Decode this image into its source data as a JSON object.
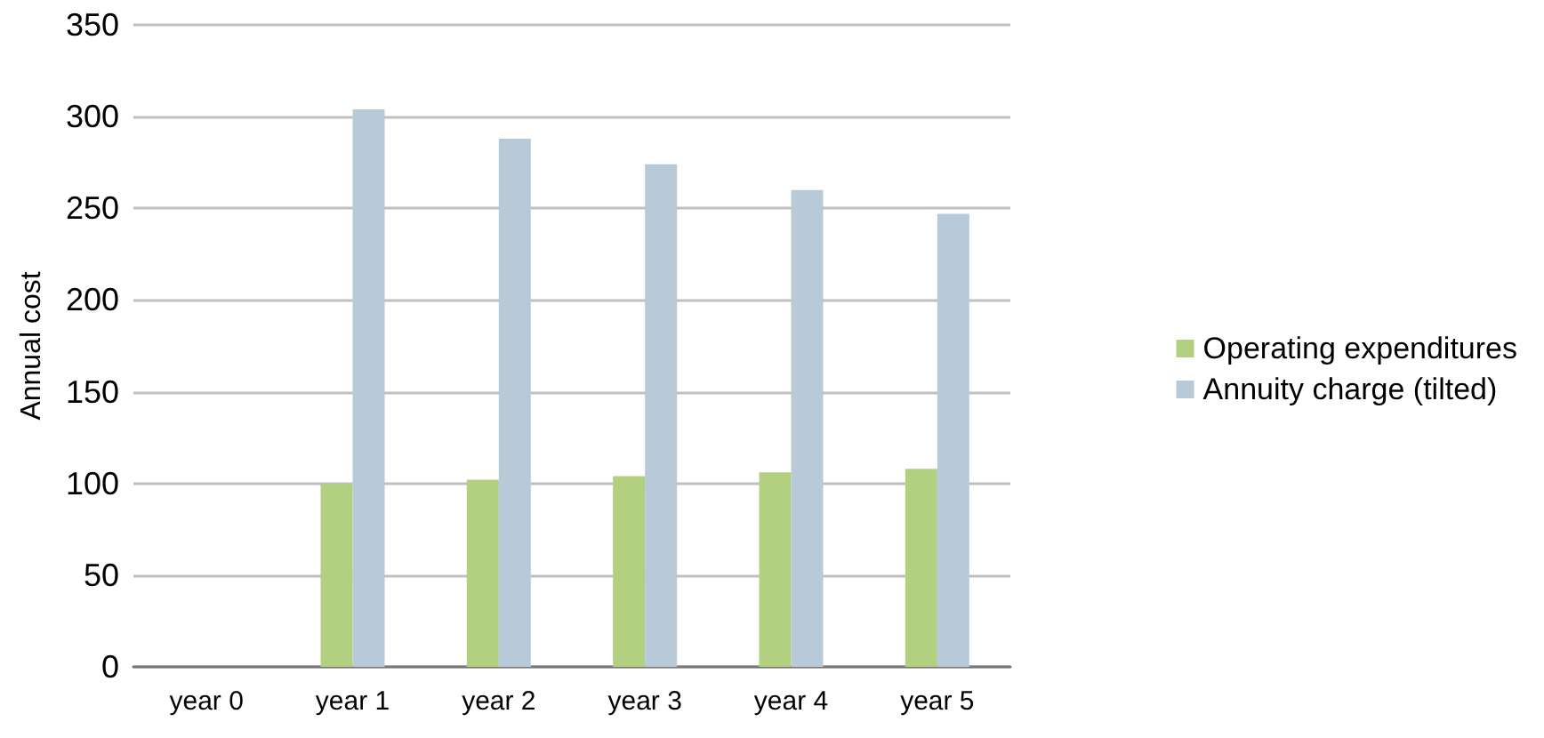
{
  "chart_data": {
    "type": "bar",
    "ylabel": "Annual cost",
    "categories": [
      "year 0",
      "year 1",
      "year 2",
      "year 3",
      "year 4",
      "year 5"
    ],
    "series": [
      {
        "name": "Operating expenditures",
        "color": "#b3cf80",
        "values": [
          0,
          100,
          102,
          104,
          106,
          108
        ]
      },
      {
        "name": "Annuity charge (tilted)",
        "color": "#b8cad8",
        "values": [
          0,
          304,
          288,
          274,
          260,
          247
        ]
      }
    ],
    "ylim": [
      0,
      350
    ],
    "yticks": [
      0,
      50,
      100,
      150,
      200,
      250,
      300,
      350
    ],
    "grid": "y",
    "legend": "right"
  }
}
